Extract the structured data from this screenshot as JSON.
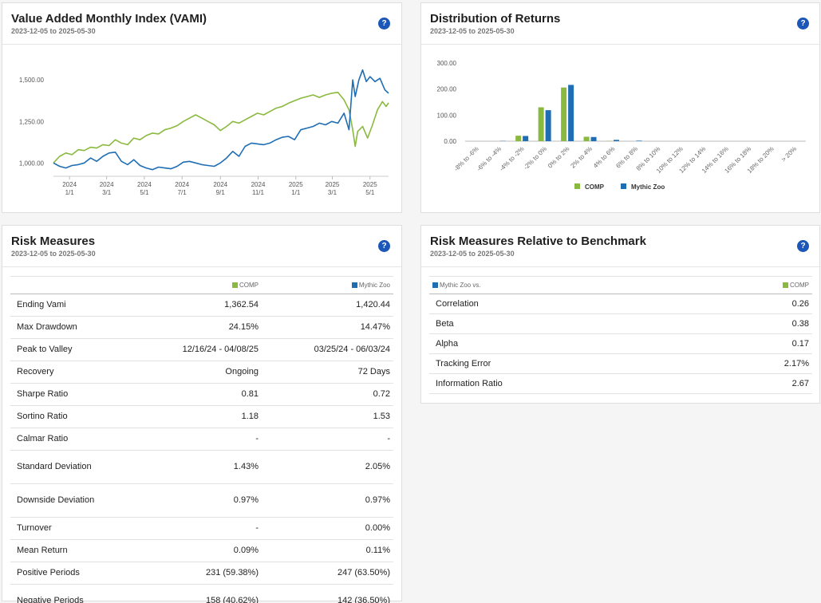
{
  "colors": {
    "comp": "#8ab93f",
    "mythic": "#1f6eb4",
    "help": "#1b56b8"
  },
  "vami": {
    "title": "Value Added Monthly Index (VAMI)",
    "subtitle": "2023-12-05 to 2025-05-30",
    "help_label": "?",
    "chart_data": {
      "type": "line",
      "ylim": [
        920,
        1650
      ],
      "yticks": [
        "1,000.00",
        "1,250.00",
        "1,500.00"
      ],
      "ytick_values": [
        1000,
        1250,
        1500
      ],
      "xticks": [
        {
          "l1": "2024",
          "l2": "1/1",
          "t": 26
        },
        {
          "l1": "2024",
          "l2": "3/1",
          "t": 86
        },
        {
          "l1": "2024",
          "l2": "5/1",
          "t": 147
        },
        {
          "l1": "2024",
          "l2": "7/1",
          "t": 208
        },
        {
          "l1": "2024",
          "l2": "9/1",
          "t": 270
        },
        {
          "l1": "2024",
          "l2": "11/1",
          "t": 331
        },
        {
          "l1": "2025",
          "l2": "1/1",
          "t": 392
        },
        {
          "l1": "2025",
          "l2": "3/1",
          "t": 451
        },
        {
          "l1": "2025",
          "l2": "5/1",
          "t": 512
        }
      ],
      "x_range": [
        0,
        542
      ],
      "series": [
        {
          "name": "COMP",
          "points": [
            [
              0,
              1000
            ],
            [
              10,
              1040
            ],
            [
              20,
              1060
            ],
            [
              30,
              1050
            ],
            [
              40,
              1080
            ],
            [
              50,
              1075
            ],
            [
              60,
              1095
            ],
            [
              70,
              1090
            ],
            [
              80,
              1110
            ],
            [
              90,
              1105
            ],
            [
              100,
              1140
            ],
            [
              110,
              1120
            ],
            [
              120,
              1110
            ],
            [
              130,
              1150
            ],
            [
              140,
              1140
            ],
            [
              150,
              1165
            ],
            [
              160,
              1180
            ],
            [
              170,
              1175
            ],
            [
              180,
              1200
            ],
            [
              190,
              1210
            ],
            [
              200,
              1225
            ],
            [
              210,
              1250
            ],
            [
              220,
              1270
            ],
            [
              230,
              1290
            ],
            [
              240,
              1270
            ],
            [
              250,
              1250
            ],
            [
              260,
              1230
            ],
            [
              270,
              1195
            ],
            [
              280,
              1220
            ],
            [
              290,
              1250
            ],
            [
              300,
              1240
            ],
            [
              310,
              1260
            ],
            [
              320,
              1280
            ],
            [
              330,
              1300
            ],
            [
              340,
              1290
            ],
            [
              350,
              1310
            ],
            [
              360,
              1330
            ],
            [
              370,
              1340
            ],
            [
              380,
              1360
            ],
            [
              390,
              1375
            ],
            [
              400,
              1390
            ],
            [
              410,
              1400
            ],
            [
              420,
              1410
            ],
            [
              430,
              1395
            ],
            [
              440,
              1410
            ],
            [
              450,
              1420
            ],
            [
              460,
              1425
            ],
            [
              470,
              1380
            ],
            [
              478,
              1320
            ],
            [
              484,
              1200
            ],
            [
              488,
              1100
            ],
            [
              492,
              1190
            ],
            [
              500,
              1220
            ],
            [
              508,
              1150
            ],
            [
              516,
              1230
            ],
            [
              524,
              1320
            ],
            [
              532,
              1370
            ],
            [
              538,
              1340
            ],
            [
              542,
              1362
            ]
          ]
        },
        {
          "name": "Mythic Zoo",
          "points": [
            [
              0,
              1000
            ],
            [
              10,
              980
            ],
            [
              20,
              970
            ],
            [
              30,
              985
            ],
            [
              40,
              990
            ],
            [
              50,
              1000
            ],
            [
              60,
              1030
            ],
            [
              70,
              1010
            ],
            [
              80,
              1040
            ],
            [
              90,
              1060
            ],
            [
              100,
              1065
            ],
            [
              110,
              1010
            ],
            [
              120,
              990
            ],
            [
              130,
              1020
            ],
            [
              140,
              985
            ],
            [
              150,
              970
            ],
            [
              160,
              960
            ],
            [
              170,
              975
            ],
            [
              180,
              970
            ],
            [
              190,
              965
            ],
            [
              200,
              980
            ],
            [
              210,
              1005
            ],
            [
              220,
              1010
            ],
            [
              230,
              1000
            ],
            [
              240,
              990
            ],
            [
              250,
              985
            ],
            [
              260,
              980
            ],
            [
              270,
              1000
            ],
            [
              280,
              1030
            ],
            [
              290,
              1070
            ],
            [
              300,
              1040
            ],
            [
              310,
              1100
            ],
            [
              320,
              1120
            ],
            [
              330,
              1115
            ],
            [
              340,
              1110
            ],
            [
              350,
              1120
            ],
            [
              360,
              1140
            ],
            [
              370,
              1155
            ],
            [
              380,
              1160
            ],
            [
              390,
              1140
            ],
            [
              400,
              1200
            ],
            [
              410,
              1210
            ],
            [
              420,
              1220
            ],
            [
              430,
              1240
            ],
            [
              440,
              1230
            ],
            [
              450,
              1250
            ],
            [
              460,
              1240
            ],
            [
              470,
              1300
            ],
            [
              478,
              1200
            ],
            [
              484,
              1500
            ],
            [
              488,
              1400
            ],
            [
              494,
              1500
            ],
            [
              500,
              1560
            ],
            [
              506,
              1490
            ],
            [
              512,
              1520
            ],
            [
              520,
              1490
            ],
            [
              528,
              1510
            ],
            [
              536,
              1440
            ],
            [
              542,
              1420
            ]
          ]
        }
      ]
    }
  },
  "dist": {
    "title": "Distribution of Returns",
    "subtitle": "2023-12-05 to 2025-05-30",
    "help_label": "?",
    "chart_data": {
      "type": "bar",
      "ylim": [
        0,
        300
      ],
      "yticks": [
        "0.00",
        "100.00",
        "200.00",
        "300.00"
      ],
      "ytick_values": [
        0,
        100,
        200,
        300
      ],
      "categories": [
        "-8% to -6%",
        "-6% to -4%",
        "-4% to -2%",
        "-2% to 0%",
        "0% to 2%",
        "2% to 4%",
        "4% to 6%",
        "6% to 8%",
        "8% to 10%",
        "10% to 12%",
        "12% to 14%",
        "14% to 16%",
        "16% to 18%",
        "18% to 20%",
        "> 20%"
      ],
      "series": [
        {
          "name": "COMP",
          "values": [
            0,
            0,
            21,
            130,
            206,
            17,
            1,
            0,
            0,
            0,
            0,
            0,
            0,
            0,
            0
          ]
        },
        {
          "name": "Mythic Zoo",
          "values": [
            0,
            1,
            20,
            119,
            216,
            16,
            5,
            2,
            0,
            0,
            0,
            0,
            0,
            0,
            0
          ]
        }
      ],
      "legend": [
        "COMP",
        "Mythic Zoo"
      ]
    }
  },
  "risk": {
    "title": "Risk Measures",
    "subtitle": "2023-12-05 to 2025-05-30",
    "help_label": "?",
    "col_comp": "COMP",
    "col_mythic": "Mythic Zoo",
    "rows": [
      {
        "label": "Ending Vami",
        "comp": "1,362.54",
        "mythic": "1,420.44",
        "tall": false
      },
      {
        "label": "Max Drawdown",
        "comp": "24.15%",
        "mythic": "14.47%",
        "tall": false
      },
      {
        "label": "Peak to Valley",
        "comp": "12/16/24 - 04/08/25",
        "mythic": "03/25/24 - 06/03/24",
        "tall": false
      },
      {
        "label": "Recovery",
        "comp": "Ongoing",
        "mythic": "72 Days",
        "tall": false
      },
      {
        "label": "Sharpe Ratio",
        "comp": "0.81",
        "mythic": "0.72",
        "tall": false
      },
      {
        "label": "Sortino Ratio",
        "comp": "1.18",
        "mythic": "1.53",
        "tall": false
      },
      {
        "label": "Calmar Ratio",
        "comp": "-",
        "mythic": "-",
        "tall": false
      },
      {
        "label": "Standard Deviation",
        "comp": "1.43%",
        "mythic": "2.05%",
        "tall": true
      },
      {
        "label": "Downside Deviation",
        "comp": "0.97%",
        "mythic": "0.97%",
        "tall": true
      },
      {
        "label": "Turnover",
        "comp": "-",
        "mythic": "0.00%",
        "tall": false
      },
      {
        "label": "Mean Return",
        "comp": "0.09%",
        "mythic": "0.11%",
        "tall": false
      },
      {
        "label": "Positive Periods",
        "comp": "231 (59.38%)",
        "mythic": "247 (63.50%)",
        "tall": false
      },
      {
        "label": "Negative Periods",
        "comp": "158 (40.62%)",
        "mythic": "142 (36.50%)",
        "tall": true
      }
    ]
  },
  "rel": {
    "title": "Risk Measures Relative to Benchmark",
    "subtitle": "2023-12-05 to 2025-05-30",
    "help_label": "?",
    "col_left": "Mythic Zoo vs.",
    "col_right": "COMP",
    "rows": [
      {
        "label": "Correlation",
        "value": "0.26"
      },
      {
        "label": "Beta",
        "value": "0.38"
      },
      {
        "label": "Alpha",
        "value": "0.17"
      },
      {
        "label": "Tracking Error",
        "value": "2.17%"
      },
      {
        "label": "Information Ratio",
        "value": "2.67"
      }
    ]
  }
}
